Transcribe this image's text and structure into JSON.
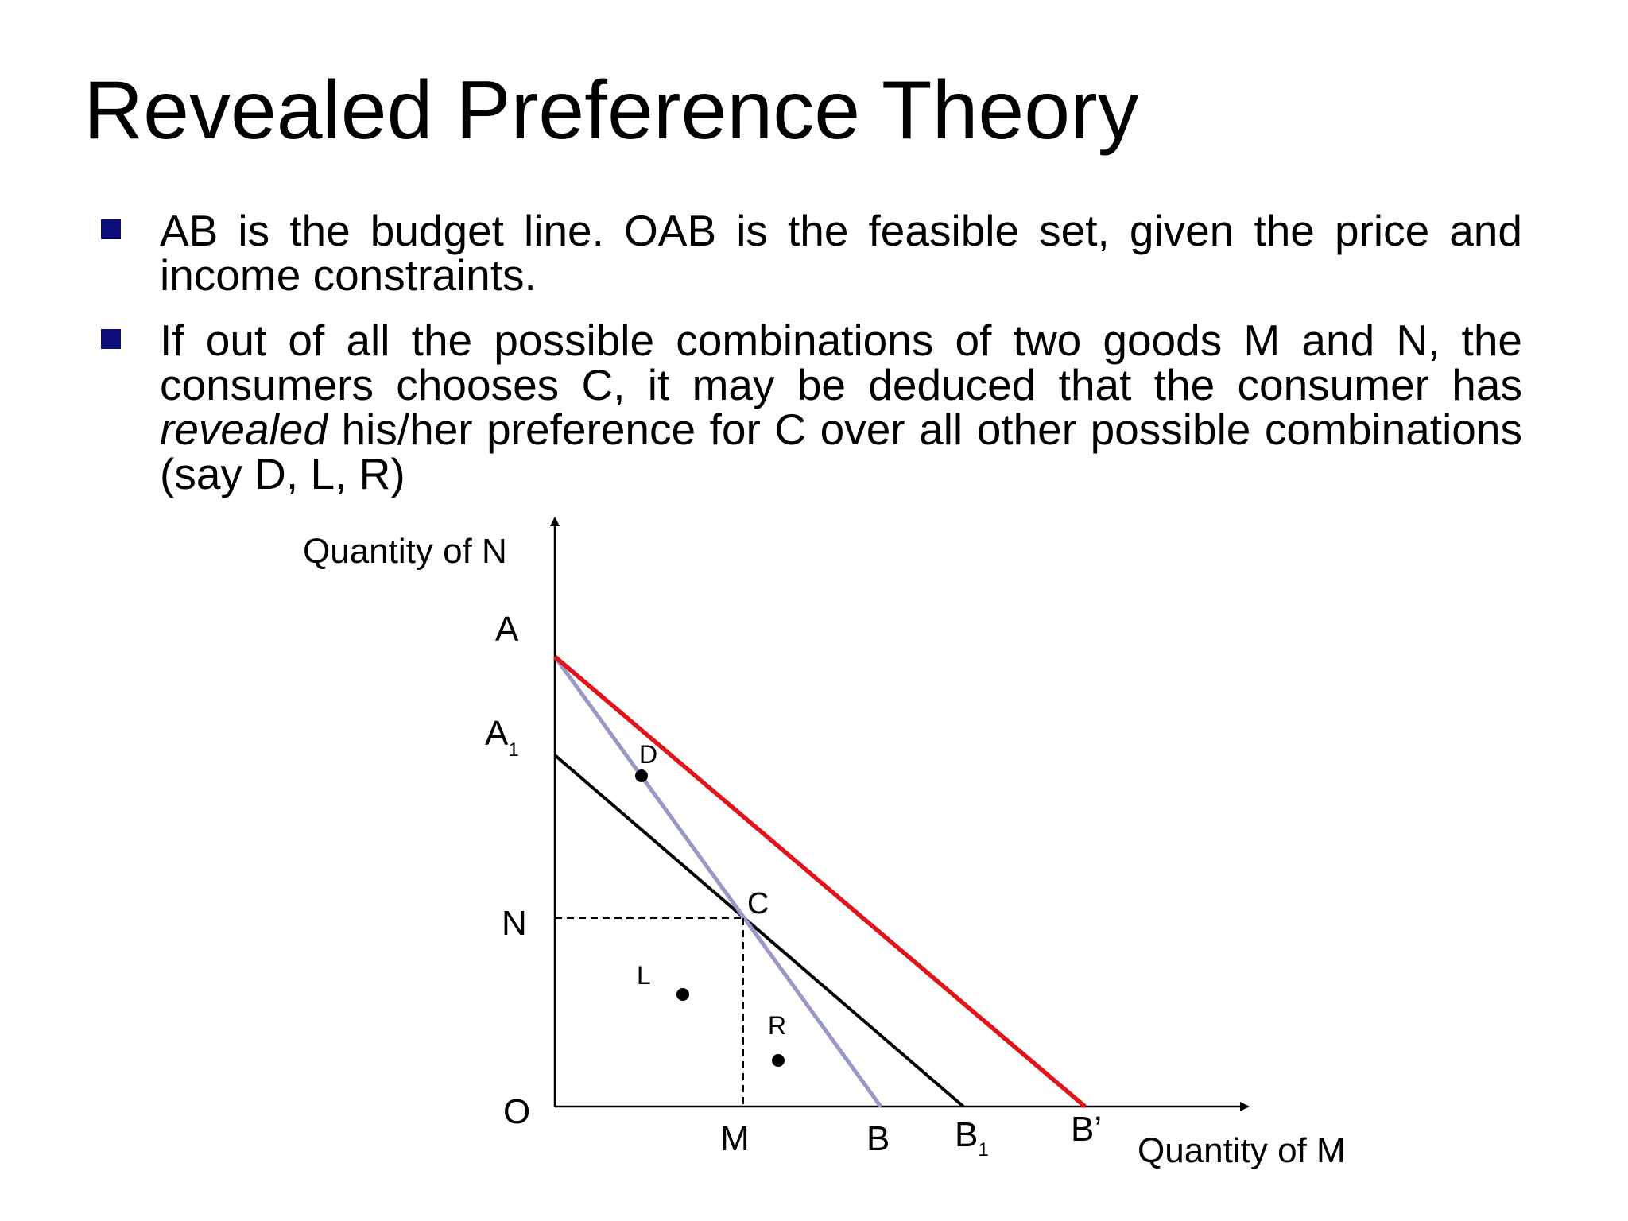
{
  "slide": {
    "title": "Revealed Preference Theory",
    "bullets": [
      {
        "text": "AB is the budget line. OAB is the feasible set, given the price and income constraints."
      },
      {
        "text_before": "If out of all the possible combinations of two goods M and N, the consumers chooses C, it may be deduced that the consumer has ",
        "emphasis": "revealed",
        "text_after": " his/her preference for C over all other possible combinations (say D, L, R)"
      }
    ]
  },
  "diagram": {
    "y_axis_label": "Quantity of N",
    "x_axis_label": "Quantity of M",
    "origin_label": "O",
    "y_labels": {
      "A": "A",
      "A1_main": "A",
      "A1_sub": "1",
      "N": "N"
    },
    "x_labels": {
      "M": "M",
      "B": "B",
      "B1_main": "B",
      "B1_sub": "1",
      "Bprime": "B’"
    },
    "points": {
      "C": "C",
      "D": "D",
      "L": "L",
      "R": "R"
    },
    "colors": {
      "line_AB": "#9999c8",
      "line_AB_prime": "#e0141b",
      "line_A1B1": "#000000",
      "bullet_square": "#0c0c7a"
    }
  }
}
